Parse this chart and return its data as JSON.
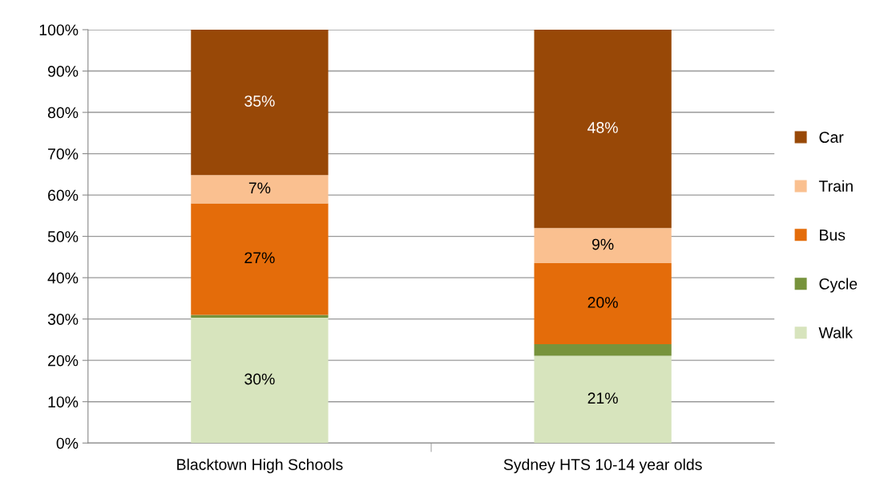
{
  "chart_data": {
    "type": "bar",
    "stacked": true,
    "categories": [
      "Blacktown High Schools",
      "Sydney HTS 10-14 year olds"
    ],
    "series": [
      {
        "name": "Walk",
        "color": "#d7e4bd",
        "values": [
          30.3,
          21.1
        ],
        "value_labels": [
          "30%",
          "21%"
        ]
      },
      {
        "name": "Cycle",
        "color": "#77933c",
        "values": [
          0.7,
          2.8
        ],
        "value_labels": [
          null,
          null
        ]
      },
      {
        "name": "Bus",
        "color": "#e46c0a",
        "values": [
          27,
          19.6
        ],
        "value_labels": [
          "27%",
          "20%"
        ]
      },
      {
        "name": "Train",
        "color": "#fac090",
        "values": [
          6.8,
          8.5
        ],
        "value_labels": [
          "7%",
          "9%"
        ]
      },
      {
        "name": "Car",
        "color": "#984807",
        "values": [
          35.2,
          48
        ],
        "value_labels": [
          "35%",
          "48%"
        ]
      }
    ],
    "ylim": [
      0,
      100
    ],
    "yticks": [
      {
        "value": 0,
        "label": "0%"
      },
      {
        "value": 10,
        "label": "10%"
      },
      {
        "value": 20,
        "label": "20%"
      },
      {
        "value": 30,
        "label": "30%"
      },
      {
        "value": 40,
        "label": "40%"
      },
      {
        "value": 50,
        "label": "50%"
      },
      {
        "value": 60,
        "label": "60%"
      },
      {
        "value": 70,
        "label": "70%"
      },
      {
        "value": 80,
        "label": "80%"
      },
      {
        "value": 90,
        "label": "90%"
      },
      {
        "value": 100,
        "label": "100%"
      }
    ],
    "grid": "y",
    "legend": "right"
  }
}
